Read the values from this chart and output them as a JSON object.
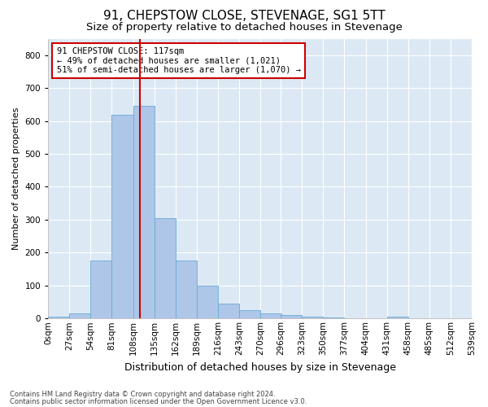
{
  "title": "91, CHEPSTOW CLOSE, STEVENAGE, SG1 5TT",
  "subtitle": "Size of property relative to detached houses in Stevenage",
  "xlabel": "Distribution of detached houses by size in Stevenage",
  "ylabel": "Number of detached properties",
  "footnote1": "Contains HM Land Registry data © Crown copyright and database right 2024.",
  "footnote2": "Contains public sector information licensed under the Open Government Licence v3.0.",
  "bin_edges": [
    0,
    27,
    54,
    81,
    108,
    135,
    162,
    189,
    216,
    243,
    270,
    296,
    323,
    350,
    377,
    404,
    431,
    458,
    485,
    512,
    539
  ],
  "bar_heights": [
    5,
    15,
    175,
    620,
    645,
    305,
    175,
    100,
    45,
    25,
    15,
    10,
    5,
    3,
    0,
    0,
    5,
    0,
    0,
    0
  ],
  "bar_color": "#aec6e8",
  "bar_edge_color": "#6aaad4",
  "background_color": "#dce9f5",
  "grid_color": "#ffffff",
  "property_size": 117,
  "annotation_line_color": "#cc0000",
  "annotation_box_text": "91 CHEPSTOW CLOSE: 117sqm\n← 49% of detached houses are smaller (1,021)\n51% of semi-detached houses are larger (1,070) →",
  "annotation_box_color": "#ffffff",
  "annotation_box_edge_color": "#cc0000",
  "ylim": [
    0,
    850
  ],
  "yticks": [
    0,
    100,
    200,
    300,
    400,
    500,
    600,
    700,
    800
  ],
  "title_fontsize": 11,
  "subtitle_fontsize": 9.5,
  "ylabel_fontsize": 8,
  "xlabel_fontsize": 9,
  "tick_fontsize": 7.5,
  "annotation_fontsize": 7.5,
  "footnote_fontsize": 6
}
